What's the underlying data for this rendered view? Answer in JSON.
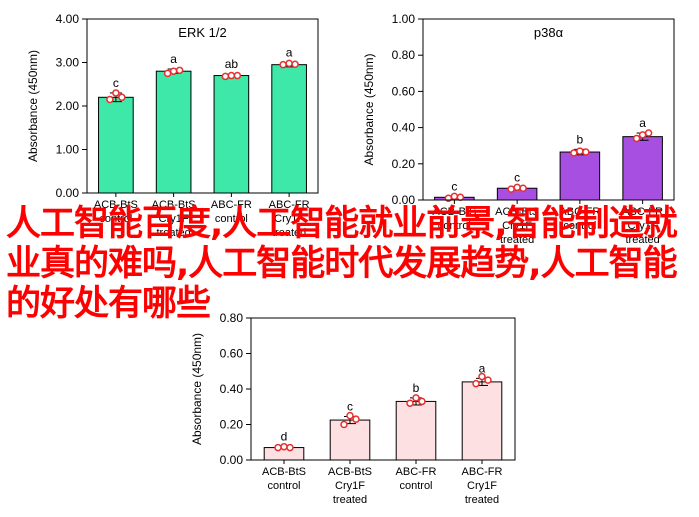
{
  "overlay": {
    "text": "人工智能百度,人工智能就业前景,智能制造就业真的难吗,人工智能时代发展趋势,人工智能的好处有哪些"
  },
  "chart_data": [
    {
      "type": "bar",
      "title": "ERK 1/2",
      "ylabel": "Absorbance (450nm)",
      "ylim": [
        0,
        4
      ],
      "yticks": [
        "0.00",
        "1.00",
        "2.00",
        "3.00",
        "4.00"
      ],
      "categories": [
        [
          "ACB-BtS",
          "control"
        ],
        [
          "ACB-BtS",
          "Cry1F",
          "treated"
        ],
        [
          "ABC-FR",
          "control"
        ],
        [
          "ABC-FR",
          "Cry1F",
          "treated"
        ]
      ],
      "values": [
        2.2,
        2.8,
        2.7,
        2.95
      ],
      "errors": [
        0.1,
        0.05,
        0.03,
        0.05
      ],
      "letters": [
        "c",
        "a",
        "ab",
        "a"
      ],
      "points": [
        [
          2.15,
          2.3,
          2.2
        ],
        [
          2.75,
          2.8,
          2.82
        ],
        [
          2.68,
          2.7,
          2.7
        ],
        [
          2.95,
          2.98,
          2.96
        ]
      ],
      "bar_color": "#3de8a8",
      "grid": false
    },
    {
      "type": "bar",
      "title": "p38α",
      "ylabel": "Absorbance (450nm)",
      "ylim": [
        0,
        1
      ],
      "yticks": [
        "0.00",
        "0.20",
        "0.40",
        "0.60",
        "0.80",
        "1.00"
      ],
      "categories": [
        [
          "ACB-BtS",
          "control"
        ],
        [
          "ACB-BtS",
          "Cry1F",
          "treated"
        ],
        [
          "ABC-FR",
          "control"
        ],
        [
          "ABC-FR",
          "Cry1F",
          "treated"
        ]
      ],
      "values": [
        0.015,
        0.065,
        0.265,
        0.35
      ],
      "errors": [
        0.005,
        0.005,
        0.015,
        0.02
      ],
      "letters": [
        "c",
        "c",
        "b",
        "a"
      ],
      "points": [
        [
          0.01,
          0.02,
          0.015
        ],
        [
          0.06,
          0.07,
          0.065
        ],
        [
          0.26,
          0.27,
          0.265
        ],
        [
          0.34,
          0.36,
          0.37
        ]
      ],
      "bar_color": "#a64fe0",
      "grid": false
    },
    {
      "type": "bar",
      "title": "",
      "ylabel": "Absorbance (450nm)",
      "ylim": [
        0,
        0.8
      ],
      "yticks": [
        "0.00",
        "0.20",
        "0.40",
        "0.60",
        "0.80"
      ],
      "categories": [
        [
          "ACB-BtS",
          "control"
        ],
        [
          "ACB-BtS",
          "Cry1F",
          "treated"
        ],
        [
          "ABC-FR",
          "control"
        ],
        [
          "ABC-FR",
          "Cry1F",
          "treated"
        ]
      ],
      "values": [
        0.07,
        0.225,
        0.33,
        0.44
      ],
      "errors": [
        0.005,
        0.02,
        0.02,
        0.02
      ],
      "letters": [
        "d",
        "c",
        "b",
        "a"
      ],
      "points": [
        [
          0.07,
          0.075,
          0.07
        ],
        [
          0.2,
          0.25,
          0.23
        ],
        [
          0.32,
          0.35,
          0.33
        ],
        [
          0.43,
          0.47,
          0.45
        ]
      ],
      "bar_color": "#fde0e2",
      "grid": false
    }
  ]
}
